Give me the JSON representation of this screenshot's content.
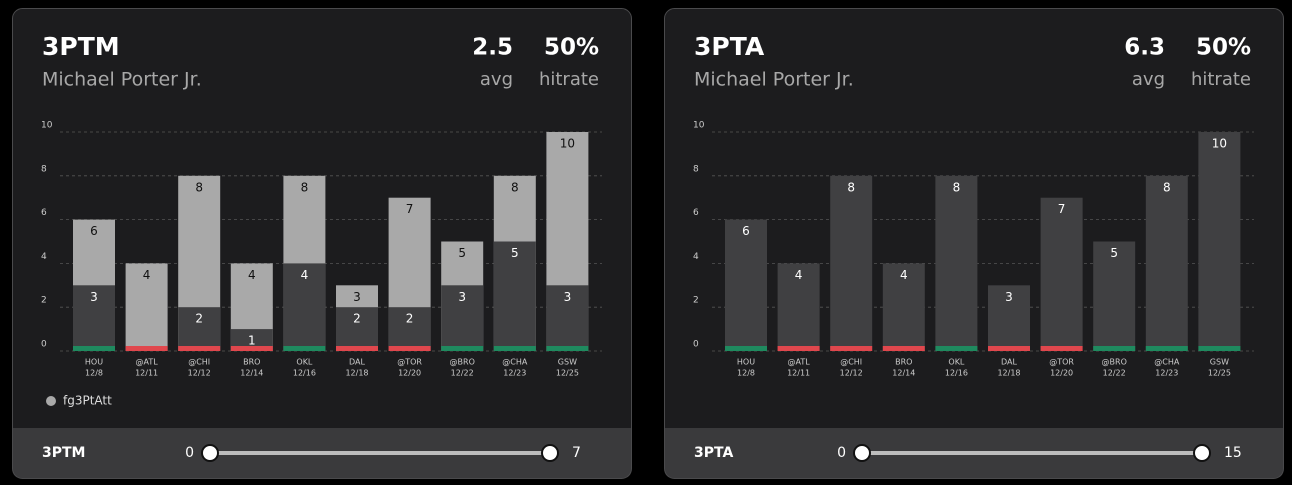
{
  "chart_data": [
    {
      "type": "bar",
      "title": "3PTM",
      "subtitle": "Michael Porter Jr.",
      "stats": [
        {
          "value": "2.5",
          "label": "avg"
        },
        {
          "value": "50%",
          "label": "hitrate"
        }
      ],
      "categories": [
        "HOU",
        "@ATL",
        "@CHI",
        "BRO",
        "OKL",
        "DAL",
        "@TOR",
        "@BRO",
        "@CHA",
        "GSW"
      ],
      "dates": [
        "12/8",
        "12/11",
        "12/12",
        "12/14",
        "12/16",
        "12/18",
        "12/20",
        "12/22",
        "12/23",
        "12/25"
      ],
      "series": [
        {
          "name": "fg3PtAtt",
          "color": "#a9a9a9",
          "label_color": "#111111",
          "values": [
            6,
            4,
            8,
            4,
            8,
            3,
            7,
            5,
            8,
            10
          ]
        },
        {
          "color": "#404042",
          "label_color": "#ffffff",
          "values": [
            3,
            0,
            2,
            1,
            4,
            2,
            2,
            3,
            5,
            3
          ]
        }
      ],
      "strip_colors": [
        "#1f8a5f",
        "#e0474d",
        "#e0474d",
        "#e0474d",
        "#1f8a5f",
        "#e0474d",
        "#e0474d",
        "#1f8a5f",
        "#1f8a5f",
        "#1f8a5f"
      ],
      "ylim": [
        0,
        10
      ],
      "yticks": [
        0,
        2,
        4,
        6,
        8,
        10
      ],
      "grid": true,
      "legend": "bottom-left",
      "slider": {
        "label": "3PTM",
        "min": 0,
        "max": 7
      }
    },
    {
      "type": "bar",
      "title": "3PTA",
      "subtitle": "Michael Porter Jr.",
      "stats": [
        {
          "value": "6.3",
          "label": "avg"
        },
        {
          "value": "50%",
          "label": "hitrate"
        }
      ],
      "categories": [
        "HOU",
        "@ATL",
        "@CHI",
        "BRO",
        "OKL",
        "DAL",
        "@TOR",
        "@BRO",
        "@CHA",
        "GSW"
      ],
      "dates": [
        "12/8",
        "12/11",
        "12/12",
        "12/14",
        "12/16",
        "12/18",
        "12/20",
        "12/22",
        "12/23",
        "12/25"
      ],
      "series": [
        {
          "color": "#404042",
          "label_color": "#ffffff",
          "values": [
            6,
            4,
            8,
            4,
            8,
            3,
            7,
            5,
            8,
            10
          ]
        }
      ],
      "strip_colors": [
        "#1f8a5f",
        "#e0474d",
        "#e0474d",
        "#e0474d",
        "#1f8a5f",
        "#e0474d",
        "#e0474d",
        "#1f8a5f",
        "#1f8a5f",
        "#1f8a5f"
      ],
      "ylim": [
        0,
        10
      ],
      "yticks": [
        0,
        2,
        4,
        6,
        8,
        10
      ],
      "grid": true,
      "slider": {
        "label": "3PTA",
        "min": 0,
        "max": 15
      }
    }
  ]
}
